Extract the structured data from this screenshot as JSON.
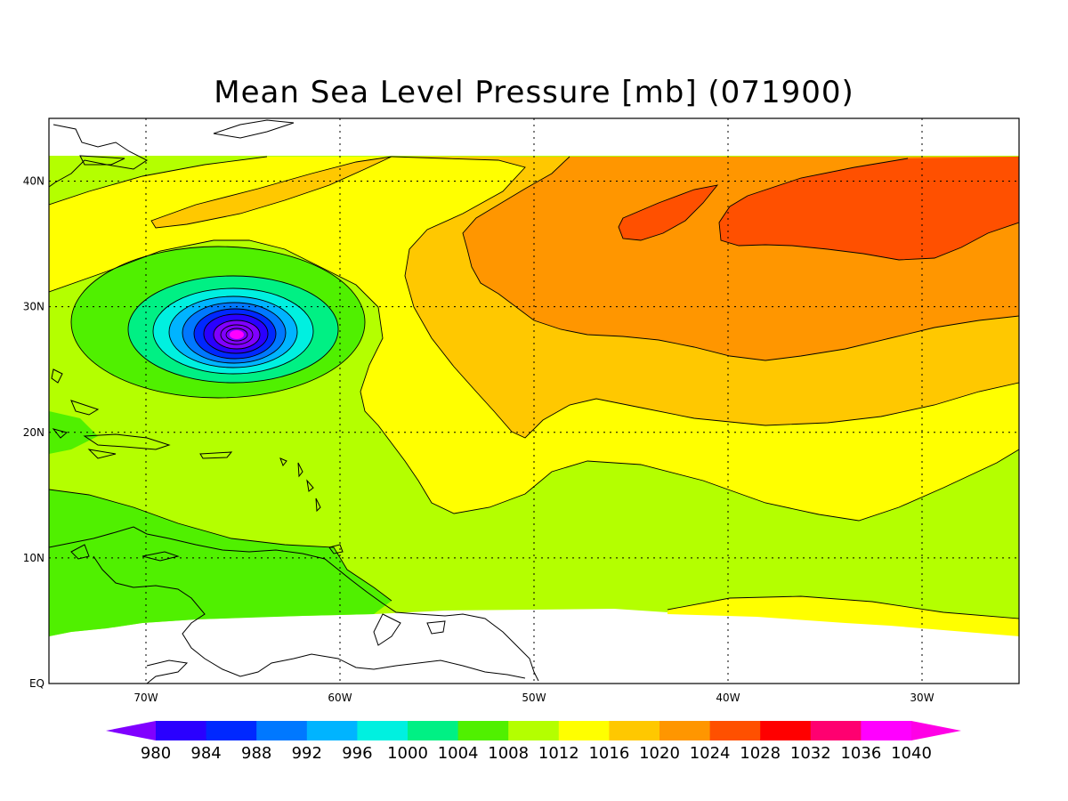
{
  "title": "Mean Sea Level Pressure [mb] (071900)",
  "map": {
    "lon_range": [
      -75,
      -25
    ],
    "lat_range": [
      0,
      45
    ],
    "data_lat_range": [
      5,
      42
    ],
    "x_ticks": [
      {
        "value": -70,
        "label": "70W"
      },
      {
        "value": -60,
        "label": "60W"
      },
      {
        "value": -50,
        "label": "50W"
      },
      {
        "value": -40,
        "label": "40W"
      },
      {
        "value": -30,
        "label": "30W"
      }
    ],
    "y_ticks": [
      {
        "value": 0,
        "label": "EQ"
      },
      {
        "value": 10,
        "label": "10N"
      },
      {
        "value": 20,
        "label": "20N"
      },
      {
        "value": 30,
        "label": "30N"
      },
      {
        "value": 40,
        "label": "40N"
      }
    ],
    "grid": true,
    "low_center": {
      "lon": -65,
      "lat": 27.8
    }
  },
  "colorbar": {
    "levels": [
      "980",
      "984",
      "988",
      "992",
      "996",
      "1000",
      "1004",
      "1008",
      "1012",
      "1016",
      "1020",
      "1024",
      "1028",
      "1032",
      "1036",
      "1040"
    ],
    "colors": [
      "#8000ff",
      "#2a00ff",
      "#0028ff",
      "#0078ff",
      "#00b4ff",
      "#00f0e0",
      "#00f084",
      "#50f000",
      "#b4ff00",
      "#ffff00",
      "#ffc800",
      "#ff9600",
      "#ff5000",
      "#ff0000",
      "#ff0070",
      "#ff00ff",
      "#ff00e6"
    ]
  }
}
